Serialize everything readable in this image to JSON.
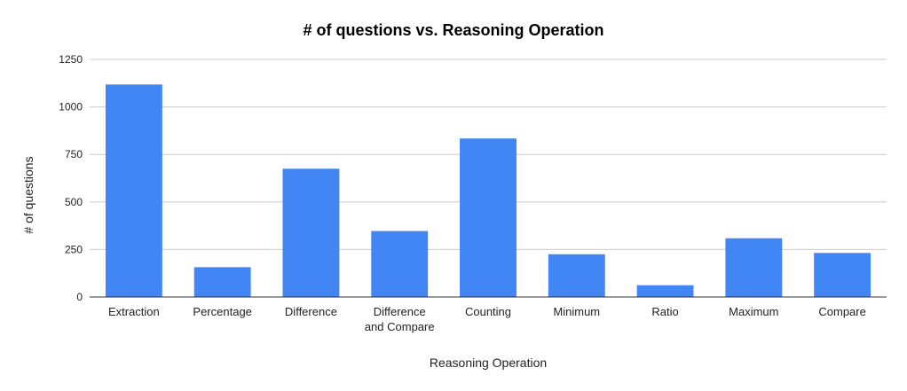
{
  "chart_data": {
    "type": "bar",
    "title": "# of questions vs. Reasoning Operation",
    "xlabel": "Reasoning Operation",
    "ylabel": "# of questions",
    "categories": [
      "Extraction",
      "Percentage",
      "Difference",
      "Difference and Compare",
      "Counting",
      "Minimum",
      "Ratio",
      "Maximum",
      "Compare"
    ],
    "category_display": [
      [
        "Extraction"
      ],
      [
        "Percentage"
      ],
      [
        "Difference"
      ],
      [
        "Difference",
        "and Compare"
      ],
      [
        "Counting"
      ],
      [
        "Minimum"
      ],
      [
        "Ratio"
      ],
      [
        "Maximum"
      ],
      [
        "Compare"
      ]
    ],
    "values": [
      1118,
      157,
      675,
      347,
      834,
      225,
      62,
      309,
      232
    ],
    "ylim": [
      0,
      1250
    ],
    "yticks": [
      0,
      250,
      500,
      750,
      1000,
      1250
    ],
    "ytick_labels": [
      "0",
      "250",
      "500",
      "750",
      "1000",
      "1250"
    ],
    "grid": true,
    "legend": "none",
    "colors": {
      "bar": "#4285f4",
      "grid": "#cccccc",
      "axis": "#333333"
    }
  }
}
